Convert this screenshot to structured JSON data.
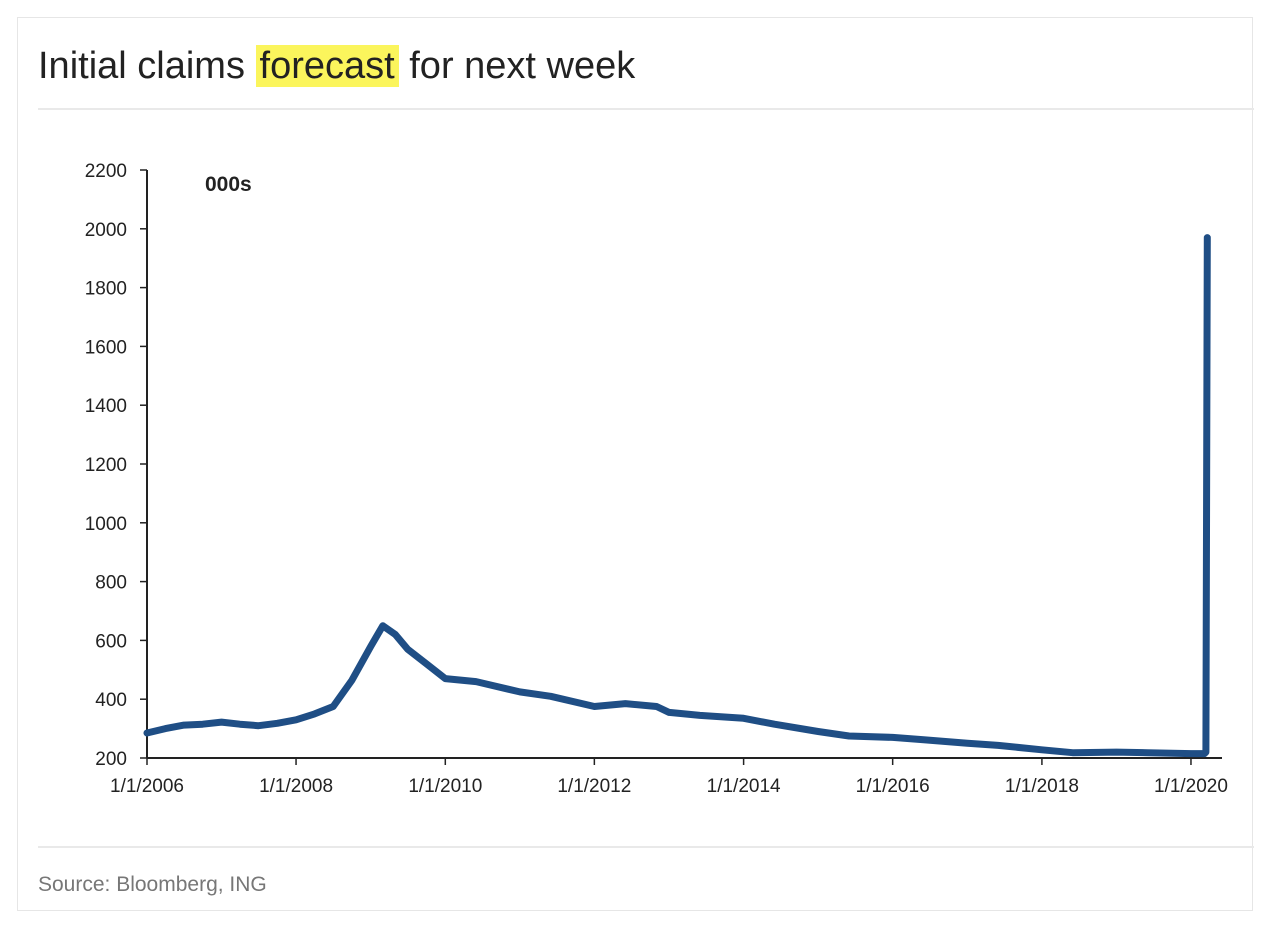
{
  "title": {
    "before": "Initial claims",
    "highlight": "forecast",
    "after": "for next week"
  },
  "source": "Source: Bloomberg, ING",
  "colors": {
    "series": "#1f4e85",
    "highlight": "#fbf55c",
    "axis": "#222222"
  },
  "chart_data": {
    "type": "line",
    "unit_label": "000s",
    "title": "",
    "xlabel": "",
    "ylabel": "",
    "ylim": [
      200,
      2200
    ],
    "yticks": [
      200,
      400,
      600,
      800,
      1000,
      1200,
      1400,
      1600,
      1800,
      2000,
      2200
    ],
    "xlim": [
      "2006-01-01",
      "2020-06-01"
    ],
    "xticks": [
      "1/1/2006",
      "1/1/2008",
      "1/1/2010",
      "1/1/2012",
      "1/1/2014",
      "1/1/2016",
      "1/1/2018",
      "1/1/2020"
    ],
    "grid": false,
    "legend": "none",
    "series": [
      {
        "values": [
          [
            "2006-01-01",
            285
          ],
          [
            "2006-04-01",
            300
          ],
          [
            "2006-07-01",
            312
          ],
          [
            "2006-10-01",
            315
          ],
          [
            "2007-01-01",
            322
          ],
          [
            "2007-04-01",
            315
          ],
          [
            "2007-07-01",
            310
          ],
          [
            "2007-10-01",
            318
          ],
          [
            "2008-01-01",
            330
          ],
          [
            "2008-04-01",
            350
          ],
          [
            "2008-07-01",
            375
          ],
          [
            "2008-10-01",
            465
          ],
          [
            "2009-01-01",
            580
          ],
          [
            "2009-03-01",
            650
          ],
          [
            "2009-05-01",
            620
          ],
          [
            "2009-07-01",
            570
          ],
          [
            "2009-10-01",
            520
          ],
          [
            "2010-01-01",
            470
          ],
          [
            "2010-06-01",
            460
          ],
          [
            "2011-01-01",
            425
          ],
          [
            "2011-06-01",
            410
          ],
          [
            "2012-01-01",
            375
          ],
          [
            "2012-06-01",
            385
          ],
          [
            "2012-11-01",
            375
          ],
          [
            "2013-01-01",
            355
          ],
          [
            "2013-06-01",
            345
          ],
          [
            "2014-01-01",
            335
          ],
          [
            "2014-06-01",
            315
          ],
          [
            "2015-01-01",
            290
          ],
          [
            "2015-06-01",
            275
          ],
          [
            "2016-01-01",
            270
          ],
          [
            "2016-06-01",
            262
          ],
          [
            "2017-01-01",
            250
          ],
          [
            "2017-06-01",
            243
          ],
          [
            "2018-01-01",
            228
          ],
          [
            "2018-06-01",
            218
          ],
          [
            "2019-01-01",
            220
          ],
          [
            "2019-06-01",
            218
          ],
          [
            "2020-01-01",
            215
          ],
          [
            "2020-03-07",
            215
          ],
          [
            "2020-03-14",
            220
          ],
          [
            "2020-03-21",
            1970
          ]
        ]
      }
    ]
  }
}
